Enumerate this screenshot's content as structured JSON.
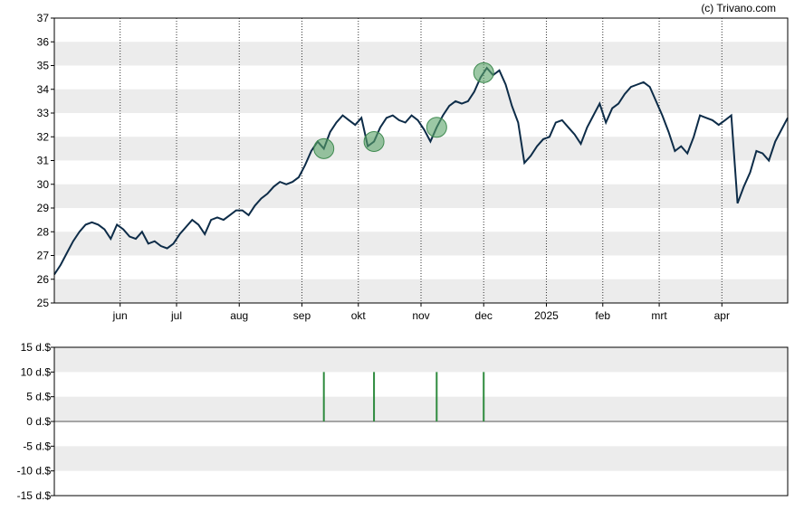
{
  "copyright": "(c) Trivano.com",
  "colors": {
    "price_line": "#0d2c48",
    "band": "#ececec",
    "grid_vertical": "#333333",
    "marker_fill": "#5aa469",
    "marker_stroke": "#3f8a50",
    "dividend_bar": "#2e8b3e",
    "axis": "#000000"
  },
  "chart_data": [
    {
      "type": "line",
      "title": "",
      "xlabel": "",
      "ylabel": "",
      "ylim": [
        25,
        37
      ],
      "y_ticks": [
        "25",
        "26",
        "27",
        "28",
        "29",
        "30",
        "31",
        "32",
        "33",
        "34",
        "35",
        "36",
        "37"
      ],
      "x_ticks": [
        "jun",
        "jul",
        "aug",
        "sep",
        "okt",
        "nov",
        "dec",
        "2025",
        "feb",
        "mrt",
        "apr"
      ],
      "x_tick_positions": [
        10.5,
        19.5,
        29.5,
        39.5,
        48.5,
        58.5,
        68.5,
        78.5,
        87.5,
        96.5,
        106.5
      ],
      "x_range": [
        0,
        117
      ],
      "grid": "alternating horizontal bands, dotted vertical lines at month ticks",
      "series": [
        {
          "values": [
            26.2,
            26.6,
            27.1,
            27.6,
            28.0,
            28.3,
            28.4,
            28.3,
            28.1,
            27.7,
            28.3,
            28.1,
            27.8,
            27.7,
            28.0,
            27.5,
            27.6,
            27.4,
            27.3,
            27.5,
            27.9,
            28.2,
            28.5,
            28.3,
            27.9,
            28.5,
            28.6,
            28.5,
            28.7,
            28.9,
            28.9,
            28.7,
            29.1,
            29.4,
            29.6,
            29.9,
            30.1,
            30.0,
            30.1,
            30.3,
            30.8,
            31.4,
            31.8,
            31.5,
            32.2,
            32.6,
            32.9,
            32.7,
            32.5,
            32.8,
            31.6,
            31.8,
            32.4,
            32.8,
            32.9,
            32.7,
            32.6,
            32.9,
            32.7,
            32.3,
            31.8,
            32.4,
            32.9,
            33.3,
            33.5,
            33.4,
            33.5,
            33.9,
            34.5,
            34.9,
            34.6,
            34.8,
            34.2,
            33.3,
            32.6,
            30.9,
            31.2,
            31.6,
            31.9,
            32.0,
            32.6,
            32.7,
            32.4,
            32.1,
            31.7,
            32.4,
            32.9,
            33.4,
            32.6,
            33.2,
            33.4,
            33.8,
            34.1,
            34.2,
            34.3,
            34.1,
            33.5,
            32.9,
            32.2,
            31.4,
            31.6,
            31.3,
            32.0,
            32.9,
            32.8,
            32.7,
            32.5,
            32.7,
            32.9,
            29.2,
            29.9,
            30.5,
            31.4,
            31.3,
            31.0,
            31.8,
            32.3,
            32.8
          ]
        }
      ],
      "markers_x": [
        43,
        51,
        61,
        68.5
      ]
    },
    {
      "type": "bar",
      "title": "",
      "xlabel": "",
      "ylabel": "",
      "ylim": [
        -15,
        15
      ],
      "y_ticks": [
        "15 d.$",
        "10 d.$",
        "5 d.$",
        "0 d.$",
        "-5 d.$",
        "-10 d.$",
        "-15 d.$"
      ],
      "y_tick_values": [
        15,
        10,
        5,
        0,
        -5,
        -10,
        -15
      ],
      "x_range": [
        0,
        117
      ],
      "bars": [
        {
          "x": 43,
          "value": 10
        },
        {
          "x": 51,
          "value": 10
        },
        {
          "x": 61,
          "value": 10
        },
        {
          "x": 68.5,
          "value": 10
        }
      ]
    }
  ]
}
